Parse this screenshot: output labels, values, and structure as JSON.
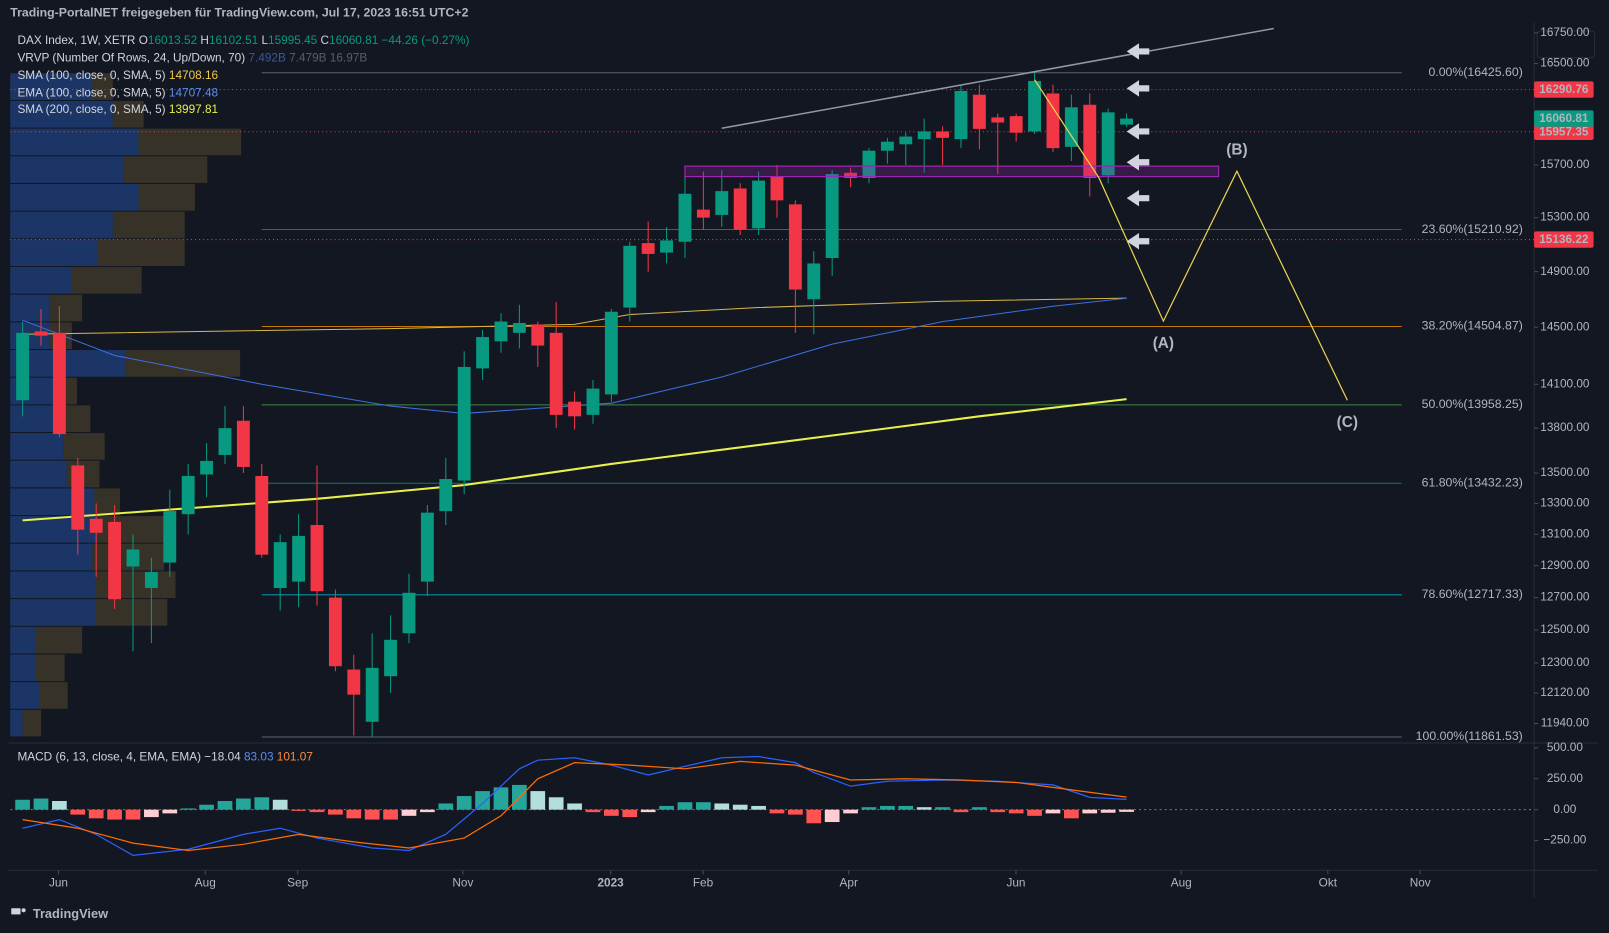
{
  "header": {
    "title": "Trading-PortalNET freigegeben für TradingView.com, Jul 17, 2023 16:51 UTC+2"
  },
  "chart_data": [
    {
      "type": "candlestick",
      "symbol": "DAX Index, 1W, XETR",
      "ohlc_letters": [
        "O",
        "H",
        "L",
        "C"
      ],
      "change_label": "−44.26 (−0.27%)",
      "up_color": "#089981",
      "down_color": "#f23645",
      "open": [
        13990,
        14470,
        14460,
        13550,
        13200,
        13180,
        12895,
        12760,
        12920,
        13230,
        13490,
        13620,
        13850,
        13480,
        12760,
        12800,
        13160,
        12700,
        12260,
        11950,
        12220,
        12480,
        12800,
        13250,
        13450,
        14210,
        14400,
        14460,
        14520,
        14460,
        13980,
        13890,
        14030,
        14640,
        15110,
        15040,
        15120,
        15360,
        15320,
        15520,
        15220,
        15610,
        15400,
        14700,
        15000,
        15640,
        15600,
        15810,
        15860,
        15900,
        15960,
        15900,
        16250,
        16070,
        16080,
        15960,
        16260,
        15840,
        16170,
        15620,
        16013.52
      ],
      "high": [
        14540,
        14630,
        14650,
        13600,
        13300,
        13290,
        13100,
        12950,
        13390,
        13560,
        13700,
        13950,
        13950,
        13560,
        13100,
        13230,
        13550,
        12750,
        12350,
        12480,
        12590,
        12850,
        13290,
        13600,
        14330,
        14480,
        14600,
        14660,
        14540,
        14680,
        14050,
        14130,
        14630,
        15120,
        15270,
        15230,
        15660,
        15650,
        15660,
        15560,
        15650,
        15700,
        15430,
        15050,
        15660,
        15680,
        15830,
        15910,
        15950,
        16060,
        16000,
        16330,
        16330,
        16100,
        16100,
        16430,
        16330,
        16250,
        16260,
        16140,
        16102.51
      ],
      "low": [
        13880,
        14370,
        13740,
        12970,
        12830,
        12630,
        12370,
        12420,
        12830,
        13100,
        13340,
        13560,
        13500,
        12950,
        12620,
        12640,
        12650,
        12250,
        11870,
        11862,
        12120,
        12420,
        12710,
        13160,
        13360,
        14130,
        14320,
        14350,
        14220,
        13800,
        13790,
        13830,
        13980,
        14540,
        14900,
        14960,
        15000,
        15210,
        15230,
        15170,
        15170,
        15300,
        14460,
        14450,
        14870,
        15530,
        15560,
        15710,
        15700,
        15640,
        15700,
        15830,
        15820,
        15630,
        15880,
        15940,
        15800,
        15730,
        15460,
        15560,
        15995.45
      ],
      "close": [
        14460,
        14440,
        13760,
        13130,
        13110,
        12690,
        13003,
        12860,
        13250,
        13480,
        13580,
        13800,
        13540,
        12970,
        13050,
        13090,
        12740,
        12280,
        12110,
        12270,
        12440,
        12730,
        13240,
        13460,
        14220,
        14430,
        14540,
        14530,
        14370,
        13890,
        13880,
        14070,
        14610,
        15090,
        15030,
        15130,
        15480,
        15300,
        15500,
        15210,
        15580,
        15430,
        14770,
        14960,
        15630,
        15600,
        15810,
        15880,
        15920,
        15960,
        15910,
        16280,
        15980,
        16030,
        15950,
        16360,
        15830,
        16150,
        15600,
        16110,
        16060.81
      ],
      "xlim": [
        -0.67,
        81.87
      ],
      "xticks": [
        {
          "value": 1.95,
          "label": "Jun"
        },
        {
          "value": 9.93,
          "label": "Aug"
        },
        {
          "value": 14.95,
          "label": "Sep"
        },
        {
          "value": 23.93,
          "label": "Nov"
        },
        {
          "value": 31.96,
          "label": "2023"
        },
        {
          "value": 36.98,
          "label": "Feb"
        },
        {
          "value": 44.9,
          "label": "Apr"
        },
        {
          "value": 53.99,
          "label": "Jun"
        },
        {
          "value": 62.97,
          "label": "Aug"
        },
        {
          "value": 70.94,
          "label": "Okt"
        },
        {
          "value": 75.96,
          "label": "Nov"
        }
      ],
      "ylim": [
        11850,
        16800
      ],
      "log_scale": true,
      "yticks": [
        {
          "value": 16750,
          "label": "16750.00"
        },
        {
          "value": 16500,
          "label": "16500.00"
        },
        {
          "value": 15700,
          "label": "15700.00"
        },
        {
          "value": 15300,
          "label": "15300.00"
        },
        {
          "value": 14900,
          "label": "14900.00"
        },
        {
          "value": 14500,
          "label": "14500.00"
        },
        {
          "value": 14100,
          "label": "14100.00"
        },
        {
          "value": 13800,
          "label": "13800.00"
        },
        {
          "value": 13500,
          "label": "13500.00"
        },
        {
          "value": 13300,
          "label": "13300.00"
        },
        {
          "value": 13100,
          "label": "13100.00"
        },
        {
          "value": 12900,
          "label": "12900.00"
        },
        {
          "value": 12700,
          "label": "12700.00"
        },
        {
          "value": 12500,
          "label": "12500.00"
        },
        {
          "value": 12300,
          "label": "12300.00"
        },
        {
          "value": 12120,
          "label": "12120.00"
        },
        {
          "value": 11940,
          "label": "11940.00"
        }
      ],
      "series": [
        {
          "name": "SMA (100, close, 0, SMA, 5)",
          "color": "#d9b74a",
          "width": 1,
          "x": [
            0,
            10,
            20,
            30,
            33,
            40,
            50,
            60
          ],
          "values": [
            14450,
            14470,
            14490,
            14520,
            14590,
            14640,
            14685,
            14708.16
          ]
        },
        {
          "name": "EMA (100, close, 0, SMA, 5)",
          "color": "#3d6fe0",
          "width": 1,
          "x": [
            0,
            5,
            13,
            20,
            24,
            32,
            38,
            44,
            50,
            56,
            60
          ],
          "values": [
            14550,
            14300,
            14100,
            13950,
            13900,
            13970,
            14150,
            14380,
            14540,
            14650,
            14707.48
          ]
        },
        {
          "name": "SMA (200, close, 0, SMA, 5)",
          "color": "#e8f04a",
          "width": 2,
          "x": [
            0,
            16,
            24,
            32,
            44,
            52,
            60
          ],
          "values": [
            13190,
            13330,
            13420,
            13560,
            13750,
            13880,
            13997.81
          ]
        }
      ],
      "volume_profile": {
        "name": "VRVP (Number Of Rows, 24, Up/Down, 70)",
        "totals": [
          "7.492B",
          "7.479B",
          "16.97B"
        ],
        "range": [
          11861.53,
          16425.6
        ],
        "up_color": "#1f3b73",
        "down_color": "#3e3729",
        "up": [
          12,
          28,
          25,
          25,
          83,
          83,
          80,
          85,
          82,
          55,
          52,
          48,
          50,
          112,
          38,
          38,
          60,
          85,
          100,
          125,
          110,
          125,
          100,
          80
        ],
        "down": [
          18,
          28,
          28,
          45,
          70,
          78,
          70,
          65,
          25,
          32,
          40,
          30,
          15,
          112,
          22,
          32,
          68,
          85,
          70,
          55,
          82,
          100,
          30,
          20
        ]
      },
      "fib_levels": [
        {
          "label": "0.00%(16425.60)",
          "value": 16425.6,
          "color": "#787b86"
        },
        {
          "label": "23.60%(15210.92)",
          "value": 15210.92,
          "color": "#f23645"
        },
        {
          "label": "38.20%(14504.87)",
          "value": 14504.87,
          "color": "#ff9800"
        },
        {
          "label": "50.00%(13958.25)",
          "value": 13958.25,
          "color": "#4caf50"
        },
        {
          "label": "61.80%(13432.23)",
          "value": 13432.23,
          "color": "#089981"
        },
        {
          "label": "78.60%(12717.33)",
          "value": 12717.33,
          "color": "#00bcd4"
        },
        {
          "label": "100.00%(11861.53)",
          "value": 11861.53,
          "color": "#787b86"
        }
      ],
      "price_lines": [
        {
          "value": 16290.76,
          "color": "#f23645"
        },
        {
          "value": 15957.35,
          "color": "#f23645"
        },
        {
          "value": 15136.22,
          "color": "#f23645"
        }
      ],
      "trendline": {
        "color": "#9598a1",
        "x": [
          38,
          68
        ],
        "y": [
          15985,
          16786
        ]
      },
      "zone": {
        "color": "#9c27b0",
        "x": [
          36,
          65
        ],
        "y": [
          15611,
          15691
        ]
      },
      "wave": {
        "color": "#e8d44d",
        "x": [
          55,
          58.5,
          62,
          66,
          72
        ],
        "y": [
          16370,
          15600,
          14543,
          15652,
          13990
        ],
        "labels": [
          "(A)",
          "(B)",
          "(C)"
        ]
      }
    },
    {
      "type": "macd",
      "name": "MACD (6, 13, close, 4, EMA, EMA)",
      "histogram": [
        80,
        90,
        70,
        -40,
        -70,
        -80,
        -80,
        -60,
        -30,
        10,
        40,
        70,
        90,
        100,
        80,
        -10,
        -20,
        -40,
        -70,
        -80,
        -80,
        -50,
        -20,
        50,
        110,
        150,
        180,
        200,
        150,
        100,
        50,
        -20,
        -50,
        -60,
        -20,
        30,
        60,
        60,
        50,
        40,
        30,
        -30,
        -40,
        -110,
        -100,
        -30,
        20,
        30,
        30,
        20,
        20,
        -20,
        20,
        -20,
        -30,
        -50,
        -30,
        -70,
        -30,
        -25,
        -18.04
      ],
      "histogram_label": "−18.04",
      "series": [
        {
          "color": "#2962ff",
          "x": [
            0,
            2,
            4,
            6,
            9,
            12,
            14,
            16,
            19,
            21,
            23,
            25,
            27,
            28,
            30,
            32,
            34,
            36,
            38,
            40,
            42,
            43,
            45,
            47,
            50,
            53,
            56,
            58,
            60
          ],
          "values": [
            -150,
            -80,
            -200,
            -370,
            -320,
            -200,
            -150,
            -230,
            -310,
            -330,
            -200,
            50,
            330,
            400,
            420,
            360,
            280,
            350,
            420,
            430,
            380,
            300,
            190,
            230,
            240,
            230,
            200,
            100,
            83.03
          ]
        },
        {
          "color": "#ff6d00",
          "x": [
            0,
            3,
            6,
            9,
            12,
            15,
            18,
            21,
            24,
            26,
            28,
            30,
            33,
            36,
            39,
            42,
            45,
            48,
            51,
            54,
            57,
            60
          ],
          "values": [
            -80,
            -150,
            -270,
            -330,
            -280,
            -200,
            -260,
            -310,
            -230,
            -50,
            250,
            380,
            360,
            330,
            390,
            360,
            240,
            250,
            240,
            220,
            160,
            101.07
          ]
        }
      ],
      "ylim": [
        -490,
        530
      ],
      "yticks": [
        {
          "value": 500,
          "label": "500.00"
        },
        {
          "value": 250,
          "label": "250.00"
        },
        {
          "value": 0,
          "label": "0.00"
        },
        {
          "value": -250,
          "label": "−250.00"
        }
      ]
    }
  ],
  "footer": {
    "brand": "TradingView"
  }
}
